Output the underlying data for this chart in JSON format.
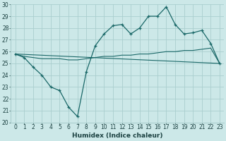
{
  "xlabel": "Humidex (Indice chaleur)",
  "bg_color": "#cce8e8",
  "grid_color": "#aacece",
  "line_color": "#1a6868",
  "xlim": [
    -0.5,
    23.5
  ],
  "ylim": [
    20,
    30
  ],
  "xticks": [
    0,
    1,
    2,
    3,
    4,
    5,
    6,
    7,
    8,
    9,
    10,
    11,
    12,
    13,
    14,
    15,
    16,
    17,
    18,
    19,
    20,
    21,
    22,
    23
  ],
  "yticks": [
    20,
    21,
    22,
    23,
    24,
    25,
    26,
    27,
    28,
    29,
    30
  ],
  "line1_x": [
    0,
    1,
    2,
    3,
    4,
    5,
    6,
    7,
    8,
    9,
    10,
    11,
    12,
    13,
    14,
    15,
    16,
    17,
    18,
    19,
    20,
    21,
    22,
    23
  ],
  "line1_y": [
    25.8,
    25.5,
    24.7,
    24.0,
    23.0,
    22.7,
    21.3,
    20.5,
    24.3,
    26.5,
    27.5,
    28.2,
    28.3,
    27.5,
    28.0,
    29.0,
    29.0,
    29.8,
    28.3,
    27.5,
    27.6,
    27.8,
    26.7,
    25.0
  ],
  "line2_x": [
    0,
    1,
    2,
    3,
    4,
    5,
    6,
    7,
    8,
    9,
    10,
    11,
    12,
    13,
    14,
    15,
    16,
    17,
    18,
    19,
    20,
    21,
    22,
    23
  ],
  "line2_y": [
    25.8,
    25.6,
    25.5,
    25.4,
    25.4,
    25.4,
    25.3,
    25.3,
    25.4,
    25.5,
    25.6,
    25.6,
    25.7,
    25.7,
    25.8,
    25.8,
    25.9,
    26.0,
    26.0,
    26.1,
    26.1,
    26.2,
    26.3,
    25.0
  ],
  "line3_x": [
    0,
    23
  ],
  "line3_y": [
    25.8,
    25.0
  ],
  "font_size": 6.5,
  "tick_font_size": 5.5
}
